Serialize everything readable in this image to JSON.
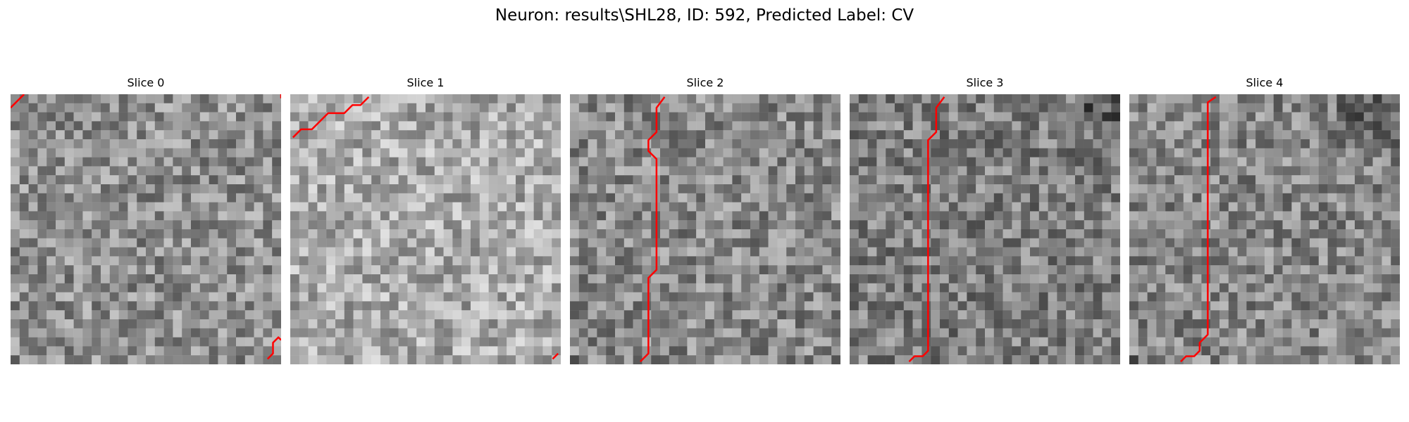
{
  "figure": {
    "title": "Neuron: results\\SHL28, ID: 592, Predicted Label: CV"
  },
  "panels": [
    {
      "title": "Slice 0",
      "trace_color": "#ff0000",
      "image_description": "grayscale noise image",
      "traces": [
        [
          [
            0,
            5
          ],
          [
            5,
            0
          ]
        ],
        [
          [
            100,
            0
          ],
          [
            100,
            1.5
          ]
        ],
        [
          [
            95,
            98
          ],
          [
            97,
            96
          ],
          [
            97,
            92
          ],
          [
            99,
            90
          ],
          [
            100,
            91
          ]
        ]
      ]
    },
    {
      "title": "Slice 1",
      "trace_color": "#ff0000",
      "image_description": "grayscale noise image",
      "traces": [
        [
          [
            1,
            16
          ],
          [
            4,
            13
          ],
          [
            8,
            13
          ],
          [
            11,
            10
          ],
          [
            14,
            7
          ],
          [
            20,
            7
          ],
          [
            23,
            4
          ],
          [
            26,
            4
          ],
          [
            29,
            1
          ]
        ],
        [
          [
            97,
            98
          ],
          [
            99,
            96
          ]
        ]
      ]
    },
    {
      "title": "Slice 2",
      "trace_color": "#ff0000",
      "image_description": "grayscale noise image",
      "traces": [
        [
          [
            26,
            99
          ],
          [
            29,
            96
          ],
          [
            29,
            68
          ],
          [
            32,
            65
          ],
          [
            32,
            24
          ],
          [
            29,
            21
          ],
          [
            29,
            17
          ],
          [
            32,
            14
          ],
          [
            32,
            5
          ],
          [
            35,
            1
          ]
        ]
      ]
    },
    {
      "title": "Slice 3",
      "trace_color": "#ff0000",
      "image_description": "grayscale noise image",
      "traces": [
        [
          [
            22,
            99
          ],
          [
            24,
            97
          ],
          [
            27,
            97
          ],
          [
            29,
            95
          ],
          [
            29,
            17
          ],
          [
            32,
            14
          ],
          [
            32,
            5
          ],
          [
            35,
            1
          ]
        ]
      ]
    },
    {
      "title": "Slice 4",
      "trace_color": "#ff0000",
      "image_description": "grayscale noise image",
      "traces": [
        [
          [
            19,
            99
          ],
          [
            21,
            97
          ],
          [
            24,
            97
          ],
          [
            26,
            95
          ],
          [
            26,
            92
          ],
          [
            29,
            89
          ],
          [
            29,
            3
          ],
          [
            32,
            1
          ]
        ]
      ]
    }
  ]
}
